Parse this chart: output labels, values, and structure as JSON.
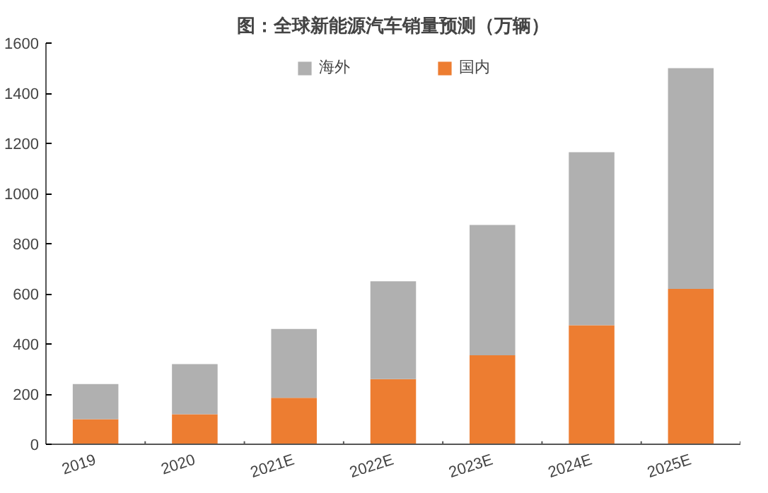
{
  "chart_data": {
    "type": "bar",
    "title": "图：全球新能源汽车销量预测（万辆）",
    "stacked": true,
    "categories": [
      "2019",
      "2020",
      "2021E",
      "2022E",
      "2023E",
      "2024E",
      "2025E"
    ],
    "series": [
      {
        "name": "国内",
        "color": "#ed7d31",
        "values": [
          100,
          120,
          185,
          260,
          355,
          475,
          620
        ]
      },
      {
        "name": "海外",
        "color": "#b0b0b0",
        "values": [
          140,
          200,
          275,
          390,
          520,
          690,
          880
        ]
      }
    ],
    "ylim": [
      0,
      1600
    ],
    "yticks": [
      0,
      200,
      400,
      600,
      800,
      1000,
      1200,
      1400,
      1600
    ],
    "grid": false,
    "legend": "top"
  }
}
